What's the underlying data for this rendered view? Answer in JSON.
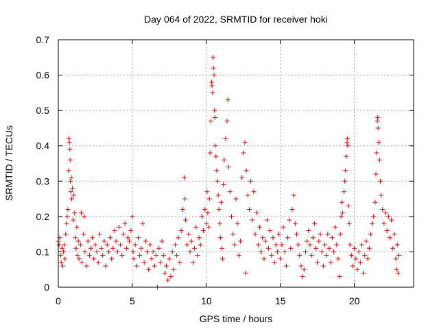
{
  "chart_data": {
    "type": "scatter",
    "title": "Day 064 of 2022, SRMTID for receiver hoki",
    "xlabel": "GPS time / hours",
    "ylabel": "SRMTID / TECUs",
    "xlim": [
      0,
      24
    ],
    "ylim": [
      0,
      0.7
    ],
    "xticks": [
      0,
      5,
      10,
      15,
      20
    ],
    "xtick_labels": [
      "0",
      "5",
      "10",
      "15",
      "20"
    ],
    "yticks": [
      0,
      0.1,
      0.2,
      0.3,
      0.4,
      0.5,
      0.6,
      0.7
    ],
    "ytick_labels": [
      "0",
      "0.1",
      "0.2",
      "0.3",
      "0.4",
      "0.5",
      "0.6",
      "0.7"
    ],
    "grid": true,
    "marker": "+",
    "color": "#e00000",
    "series": [
      {
        "name": "SRMTID",
        "points": [
          [
            0.0,
            0.13
          ],
          [
            0.05,
            0.12
          ],
          [
            0.1,
            0.14
          ],
          [
            0.15,
            0.09
          ],
          [
            0.2,
            0.07
          ],
          [
            0.25,
            0.11
          ],
          [
            0.3,
            0.06
          ],
          [
            0.35,
            0.1
          ],
          [
            0.4,
            0.12
          ],
          [
            0.45,
            0.08
          ],
          [
            0.5,
            0.15
          ],
          [
            0.55,
            0.18
          ],
          [
            0.6,
            0.2
          ],
          [
            0.65,
            0.22
          ],
          [
            0.7,
            0.33
          ],
          [
            0.72,
            0.42
          ],
          [
            0.75,
            0.41
          ],
          [
            0.78,
            0.39
          ],
          [
            0.8,
            0.36
          ],
          [
            0.82,
            0.3
          ],
          [
            0.85,
            0.27
          ],
          [
            0.88,
            0.31
          ],
          [
            0.9,
            0.25
          ],
          [
            0.95,
            0.28
          ],
          [
            1.0,
            0.19
          ],
          [
            1.05,
            0.26
          ],
          [
            1.1,
            0.21
          ],
          [
            1.15,
            0.14
          ],
          [
            1.2,
            0.11
          ],
          [
            1.25,
            0.17
          ],
          [
            1.3,
            0.09
          ],
          [
            1.35,
            0.13
          ],
          [
            1.4,
            0.08
          ],
          [
            1.5,
            0.12
          ],
          [
            1.55,
            0.21
          ],
          [
            1.6,
            0.07
          ],
          [
            1.7,
            0.15
          ],
          [
            1.75,
            0.2
          ],
          [
            1.8,
            0.1
          ],
          [
            1.9,
            0.06
          ],
          [
            2.0,
            0.13
          ],
          [
            2.1,
            0.09
          ],
          [
            2.2,
            0.11
          ],
          [
            2.3,
            0.14
          ],
          [
            2.4,
            0.08
          ],
          [
            2.5,
            0.12
          ],
          [
            2.6,
            0.1
          ],
          [
            2.7,
            0.07
          ],
          [
            2.8,
            0.15
          ],
          [
            2.9,
            0.11
          ],
          [
            3.0,
            0.09
          ],
          [
            3.1,
            0.13
          ],
          [
            3.2,
            0.06
          ],
          [
            3.3,
            0.12
          ],
          [
            3.4,
            0.1
          ],
          [
            3.5,
            0.14
          ],
          [
            3.6,
            0.08
          ],
          [
            3.7,
            0.11
          ],
          [
            3.8,
            0.16
          ],
          [
            3.9,
            0.13
          ],
          [
            4.0,
            0.1
          ],
          [
            4.1,
            0.17
          ],
          [
            4.2,
            0.12
          ],
          [
            4.3,
            0.09
          ],
          [
            4.4,
            0.15
          ],
          [
            4.5,
            0.18
          ],
          [
            4.6,
            0.11
          ],
          [
            4.7,
            0.14
          ],
          [
            4.8,
            0.13
          ],
          [
            4.9,
            0.16
          ],
          [
            5.0,
            0.2
          ],
          [
            5.05,
            0.1
          ],
          [
            5.1,
            0.08
          ],
          [
            5.2,
            0.12
          ],
          [
            5.3,
            0.06
          ],
          [
            5.4,
            0.14
          ],
          [
            5.5,
            0.09
          ],
          [
            5.6,
            0.11
          ],
          [
            5.7,
            0.18
          ],
          [
            5.8,
            0.07
          ],
          [
            5.9,
            0.13
          ],
          [
            6.0,
            0.1
          ],
          [
            6.1,
            0.05
          ],
          [
            6.2,
            0.12
          ],
          [
            6.3,
            0.08
          ],
          [
            6.4,
            0.1
          ],
          [
            6.5,
            0.06
          ],
          [
            6.6,
            0.09
          ],
          [
            6.7,
            0.0
          ],
          [
            6.8,
            0.11
          ],
          [
            6.9,
            0.07
          ],
          [
            7.0,
            0.13
          ],
          [
            7.1,
            0.09
          ],
          [
            7.2,
            0.04
          ],
          [
            7.3,
            0.06
          ],
          [
            7.4,
            0.02
          ],
          [
            7.5,
            0.08
          ],
          [
            7.6,
            0.03
          ],
          [
            7.7,
            0.1
          ],
          [
            7.8,
            0.05
          ],
          [
            7.9,
            0.12
          ],
          [
            8.0,
            0.09
          ],
          [
            8.1,
            0.14
          ],
          [
            8.2,
            0.07
          ],
          [
            8.3,
            0.16
          ],
          [
            8.4,
            0.22
          ],
          [
            8.5,
            0.31
          ],
          [
            8.55,
            0.25
          ],
          [
            8.6,
            0.19
          ],
          [
            8.7,
            0.12
          ],
          [
            8.8,
            0.15
          ],
          [
            8.9,
            0.1
          ],
          [
            9.0,
            0.13
          ],
          [
            9.1,
            0.07
          ],
          [
            9.2,
            0.11
          ],
          [
            9.3,
            0.17
          ],
          [
            9.4,
            0.09
          ],
          [
            9.5,
            0.14
          ],
          [
            9.6,
            0.12
          ],
          [
            9.7,
            0.2
          ],
          [
            9.8,
            0.16
          ],
          [
            9.9,
            0.22
          ],
          [
            10.0,
            0.18
          ],
          [
            10.05,
            0.27
          ],
          [
            10.1,
            0.21
          ],
          [
            10.15,
            0.17
          ],
          [
            10.2,
            0.25
          ],
          [
            10.25,
            0.38
          ],
          [
            10.3,
            0.47
          ],
          [
            10.35,
            0.58
          ],
          [
            10.38,
            0.57
          ],
          [
            10.42,
            0.55
          ],
          [
            10.45,
            0.65
          ],
          [
            10.48,
            0.62
          ],
          [
            10.52,
            0.6
          ],
          [
            10.55,
            0.5
          ],
          [
            10.58,
            0.48
          ],
          [
            10.6,
            0.4
          ],
          [
            10.65,
            0.37
          ],
          [
            10.7,
            0.33
          ],
          [
            10.75,
            0.3
          ],
          [
            10.8,
            0.26
          ],
          [
            10.85,
            0.22
          ],
          [
            10.9,
            0.18
          ],
          [
            10.95,
            0.14
          ],
          [
            11.0,
            0.24
          ],
          [
            11.05,
            0.11
          ],
          [
            11.1,
            0.08
          ],
          [
            11.15,
            0.29
          ],
          [
            11.2,
            0.36
          ],
          [
            11.3,
            0.42
          ],
          [
            11.4,
            0.47
          ],
          [
            11.45,
            0.53
          ],
          [
            11.5,
            0.34
          ],
          [
            11.6,
            0.27
          ],
          [
            11.7,
            0.2
          ],
          [
            11.8,
            0.15
          ],
          [
            11.9,
            0.12
          ],
          [
            12.0,
            0.25
          ],
          [
            12.1,
            0.18
          ],
          [
            12.2,
            0.09
          ],
          [
            12.3,
            0.13
          ],
          [
            12.4,
            0.31
          ],
          [
            12.5,
            0.38
          ],
          [
            12.6,
            0.41
          ],
          [
            12.65,
            0.04
          ],
          [
            12.7,
            0.33
          ],
          [
            12.8,
            0.26
          ],
          [
            12.9,
            0.22
          ],
          [
            13.0,
            0.3
          ],
          [
            13.1,
            0.19
          ],
          [
            13.2,
            0.27
          ],
          [
            13.3,
            0.15
          ],
          [
            13.4,
            0.21
          ],
          [
            13.5,
            0.12
          ],
          [
            13.6,
            0.17
          ],
          [
            13.7,
            0.1
          ],
          [
            13.8,
            0.14
          ],
          [
            13.9,
            0.08
          ],
          [
            14.0,
            0.13
          ],
          [
            14.1,
            0.19
          ],
          [
            14.2,
            0.11
          ],
          [
            14.3,
            0.16
          ],
          [
            14.4,
            0.09
          ],
          [
            14.5,
            0.14
          ],
          [
            14.6,
            0.07
          ],
          [
            14.7,
            0.12
          ],
          [
            14.8,
            0.1
          ],
          [
            14.9,
            0.15
          ],
          [
            15.0,
            0.08
          ],
          [
            15.1,
            0.12
          ],
          [
            15.2,
            0.17
          ],
          [
            15.3,
            0.1
          ],
          [
            15.4,
            0.06
          ],
          [
            15.5,
            0.14
          ],
          [
            15.6,
            0.19
          ],
          [
            15.7,
            0.11
          ],
          [
            15.8,
            0.22
          ],
          [
            15.9,
            0.26
          ],
          [
            16.0,
            0.18
          ],
          [
            16.1,
            0.15
          ],
          [
            16.2,
            0.12
          ],
          [
            16.3,
            0.09
          ],
          [
            16.4,
            0.06
          ],
          [
            16.5,
            0.03
          ],
          [
            16.6,
            0.05
          ],
          [
            16.7,
            0.1
          ],
          [
            16.8,
            0.13
          ],
          [
            16.9,
            0.16
          ],
          [
            17.0,
            0.12
          ],
          [
            17.1,
            0.09
          ],
          [
            17.2,
            0.14
          ],
          [
            17.3,
            0.18
          ],
          [
            17.4,
            0.11
          ],
          [
            17.5,
            0.07
          ],
          [
            17.6,
            0.13
          ],
          [
            17.7,
            0.15
          ],
          [
            17.8,
            0.1
          ],
          [
            17.9,
            0.06
          ],
          [
            18.0,
            0.12
          ],
          [
            18.1,
            0.09
          ],
          [
            18.2,
            0.15
          ],
          [
            18.3,
            0.11
          ],
          [
            18.4,
            0.07
          ],
          [
            18.5,
            0.14
          ],
          [
            18.6,
            0.1
          ],
          [
            18.7,
            0.17
          ],
          [
            18.8,
            0.12
          ],
          [
            18.9,
            0.08
          ],
          [
            19.0,
            0.03
          ],
          [
            19.05,
            0.15
          ],
          [
            19.1,
            0.2
          ],
          [
            19.15,
            0.24
          ],
          [
            19.2,
            0.21
          ],
          [
            19.3,
            0.27
          ],
          [
            19.35,
            0.3
          ],
          [
            19.4,
            0.33
          ],
          [
            19.45,
            0.37
          ],
          [
            19.5,
            0.41
          ],
          [
            19.52,
            0.42
          ],
          [
            19.55,
            0.4
          ],
          [
            19.6,
            0.23
          ],
          [
            19.65,
            0.18
          ],
          [
            19.7,
            0.12
          ],
          [
            19.8,
            0.09
          ],
          [
            19.9,
            0.06
          ],
          [
            20.0,
            0.11
          ],
          [
            20.1,
            0.08
          ],
          [
            20.2,
            0.05
          ],
          [
            20.3,
            0.1
          ],
          [
            20.4,
            0.07
          ],
          [
            20.5,
            0.12
          ],
          [
            20.6,
            0.04
          ],
          [
            20.7,
            0.09
          ],
          [
            20.8,
            0.13
          ],
          [
            20.9,
            0.08
          ],
          [
            21.0,
            0.11
          ],
          [
            21.1,
            0.15
          ],
          [
            21.2,
            0.18
          ],
          [
            21.3,
            0.2
          ],
          [
            21.4,
            0.24
          ],
          [
            21.45,
            0.32
          ],
          [
            21.5,
            0.38
          ],
          [
            21.55,
            0.47
          ],
          [
            21.58,
            0.48
          ],
          [
            21.6,
            0.45
          ],
          [
            21.65,
            0.41
          ],
          [
            21.7,
            0.36
          ],
          [
            21.75,
            0.3
          ],
          [
            21.8,
            0.26
          ],
          [
            21.9,
            0.22
          ],
          [
            22.0,
            0.18
          ],
          [
            22.1,
            0.21
          ],
          [
            22.2,
            0.16
          ],
          [
            22.3,
            0.2
          ],
          [
            22.4,
            0.14
          ],
          [
            22.5,
            0.19
          ],
          [
            22.6,
            0.11
          ],
          [
            22.7,
            0.15
          ],
          [
            22.8,
            0.08
          ],
          [
            22.85,
            0.05
          ],
          [
            22.9,
            0.12
          ],
          [
            22.95,
            0.04
          ],
          [
            23.0,
            0.09
          ]
        ]
      }
    ]
  }
}
